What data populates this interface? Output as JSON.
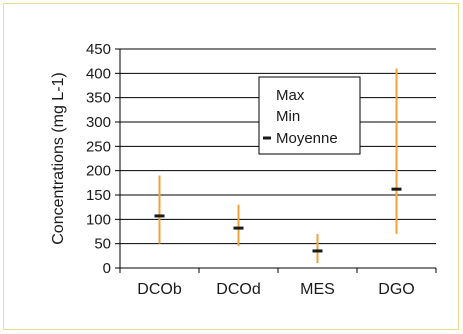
{
  "chart_data": {
    "type": "range",
    "ylabel": "Concentrations (mg L-1)",
    "ylim": [
      0,
      450
    ],
    "yticks": [
      0,
      50,
      100,
      150,
      200,
      250,
      300,
      350,
      400,
      450
    ],
    "categories": [
      "DCOb",
      "DCOd",
      "MES",
      "DGO"
    ],
    "series": [
      {
        "name": "Max",
        "values": [
          190,
          130,
          70,
          410
        ]
      },
      {
        "name": "Min",
        "values": [
          50,
          45,
          10,
          70
        ]
      },
      {
        "name": "Moyenne",
        "values": [
          107,
          82,
          35,
          162
        ]
      }
    ],
    "grid": true,
    "legend": "top-right",
    "colors": {
      "range": "#f0a33c",
      "mean": "#1a1a1a",
      "frame": "#ecd98a",
      "grid": "#000000"
    }
  }
}
